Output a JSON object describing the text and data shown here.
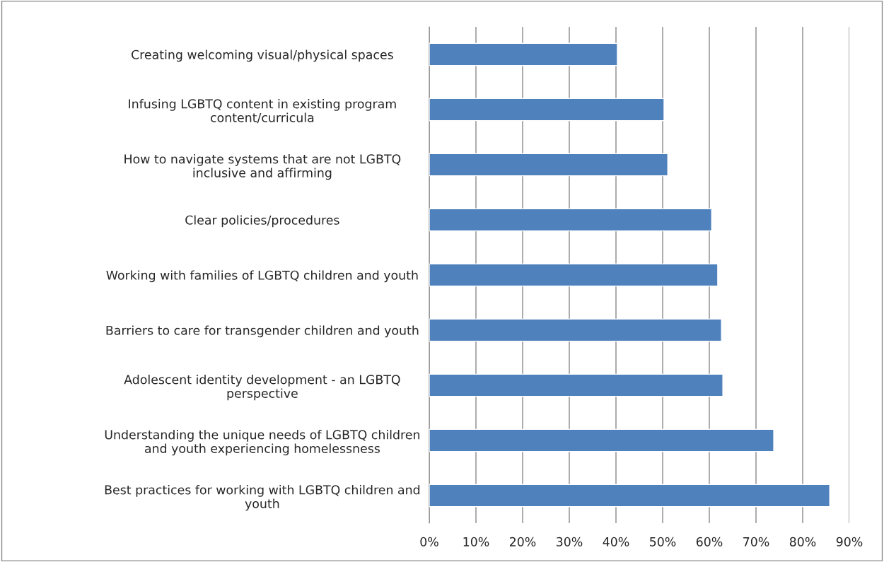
{
  "chart_data": {
    "type": "bar",
    "orientation": "horizontal",
    "categories": [
      "Creating welcoming visual/physical spaces",
      "Infusing LGBTQ content in existing program\ncontent/curricula",
      "How to navigate systems that are not LGBTQ\ninclusive and affirming",
      "Clear policies/procedures",
      "Working with families of LGBTQ children and youth",
      "Barriers to care for transgender children and youth",
      "Adolescent identity development - an LGBTQ\nperspective",
      "Understanding the unique needs of LGBTQ children\nand youth experiencing homelessness",
      "Best practices for working with LGBTQ children and\nyouth"
    ],
    "values": [
      40.3,
      50.3,
      51.1,
      60.5,
      61.8,
      62.6,
      62.9,
      73.8,
      85.8
    ],
    "color": "#4f81bd",
    "xlim": [
      0,
      90
    ],
    "xticks": [
      {
        "value": 0,
        "label": "0%"
      },
      {
        "value": 10,
        "label": "10%"
      },
      {
        "value": 20,
        "label": "20%"
      },
      {
        "value": 30,
        "label": "30%"
      },
      {
        "value": 40,
        "label": "40%"
      },
      {
        "value": 50,
        "label": "50%"
      },
      {
        "value": 60,
        "label": "60%"
      },
      {
        "value": 70,
        "label": "70%"
      },
      {
        "value": 80,
        "label": "80%"
      },
      {
        "value": 90,
        "label": "90%"
      }
    ],
    "grid": "x",
    "legend": false
  }
}
